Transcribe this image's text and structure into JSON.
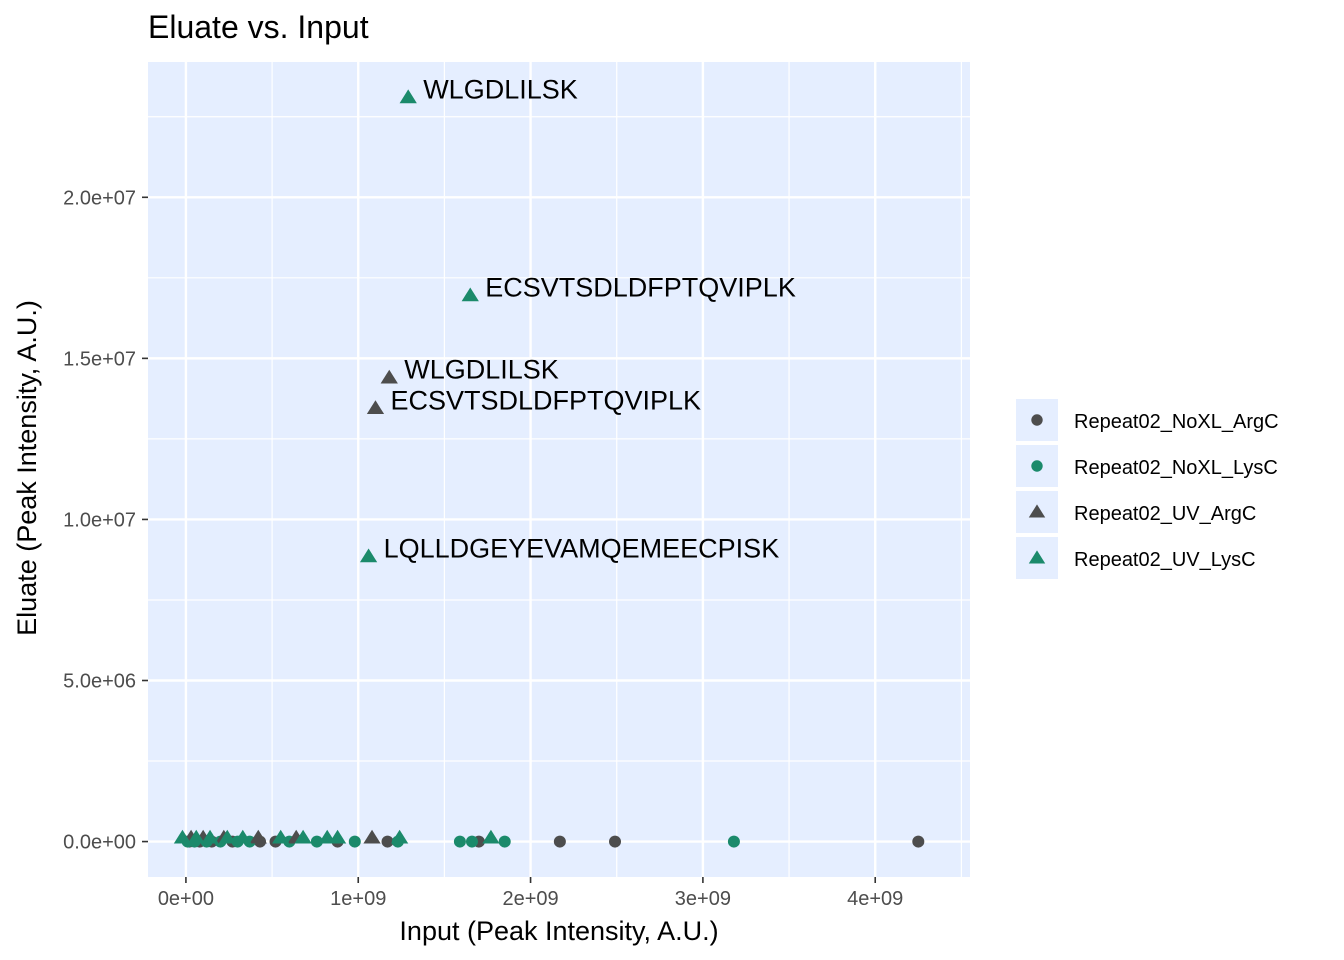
{
  "chart_data": {
    "type": "scatter",
    "title": "Eluate vs. Input",
    "xlabel": "Input (Peak Intensity, A.U.)",
    "ylabel": "Eluate (Peak Intensity, A.U.)",
    "xlim": [
      -220000000.0,
      4550000000.0
    ],
    "ylim": [
      -1100000.0,
      24200000.0
    ],
    "x_ticks": [
      {
        "value": 0,
        "label": "0e+00"
      },
      {
        "value": 1000000000.0,
        "label": "1e+09"
      },
      {
        "value": 2000000000.0,
        "label": "2e+09"
      },
      {
        "value": 3000000000.0,
        "label": "3e+09"
      },
      {
        "value": 4000000000.0,
        "label": "4e+09"
      }
    ],
    "y_ticks": [
      {
        "value": 0,
        "label": "0.0e+00"
      },
      {
        "value": 5000000.0,
        "label": "5.0e+06"
      },
      {
        "value": 10000000.0,
        "label": "1.0e+07"
      },
      {
        "value": 15000000.0,
        "label": "1.5e+07"
      },
      {
        "value": 20000000.0,
        "label": "2.0e+07"
      }
    ],
    "grid": true,
    "panel_background": "#e5eeff",
    "legend_position": "right",
    "series": [
      {
        "name": "Repeat02_NoXL_ArgC",
        "shape": "circle",
        "color": "#4d4d4d",
        "points": [
          {
            "x": 20000000.0,
            "y": 0
          },
          {
            "x": 80000000.0,
            "y": 0
          },
          {
            "x": 150000000.0,
            "y": 0
          },
          {
            "x": 270000000.0,
            "y": 0
          },
          {
            "x": 430000000.0,
            "y": 0
          },
          {
            "x": 520000000.0,
            "y": 0
          },
          {
            "x": 880000000.0,
            "y": 0
          },
          {
            "x": 1170000000.0,
            "y": 0
          },
          {
            "x": 1700000000.0,
            "y": 0
          },
          {
            "x": 2170000000.0,
            "y": 0
          },
          {
            "x": 2490000000.0,
            "y": 0
          },
          {
            "x": 4250000000.0,
            "y": 0
          }
        ]
      },
      {
        "name": "Repeat02_NoXL_LysC",
        "shape": "circle",
        "color": "#1b8a6b",
        "points": [
          {
            "x": 10000000.0,
            "y": 0
          },
          {
            "x": 50000000.0,
            "y": 0
          },
          {
            "x": 120000000.0,
            "y": 0
          },
          {
            "x": 200000000.0,
            "y": 0
          },
          {
            "x": 300000000.0,
            "y": 0
          },
          {
            "x": 370000000.0,
            "y": 0
          },
          {
            "x": 600000000.0,
            "y": 0
          },
          {
            "x": 760000000.0,
            "y": 0
          },
          {
            "x": 980000000.0,
            "y": 0
          },
          {
            "x": 1230000000.0,
            "y": 0
          },
          {
            "x": 1590000000.0,
            "y": 0
          },
          {
            "x": 1660000000.0,
            "y": 0
          },
          {
            "x": 1850000000.0,
            "y": 0
          },
          {
            "x": 3180000000.0,
            "y": 0
          }
        ]
      },
      {
        "name": "Repeat02_UV_ArgC",
        "shape": "triangle",
        "color": "#4d4d4d",
        "points": [
          {
            "x": 30000000.0,
            "y": 120000.0
          },
          {
            "x": 100000000.0,
            "y": 120000.0
          },
          {
            "x": 220000000.0,
            "y": 120000.0
          },
          {
            "x": 420000000.0,
            "y": 120000.0
          },
          {
            "x": 640000000.0,
            "y": 120000.0
          },
          {
            "x": 1080000000.0,
            "y": 120000.0
          },
          {
            "x": 1100000000.0,
            "y": 13450000.0,
            "label": "ECSVTSDLDFPTQVIPLK"
          },
          {
            "x": 1180000000.0,
            "y": 14400000.0,
            "label": "WLGDLILSK"
          }
        ]
      },
      {
        "name": "Repeat02_UV_LysC",
        "shape": "triangle",
        "color": "#1b8a6b",
        "points": [
          {
            "x": -20000000.0,
            "y": 120000.0
          },
          {
            "x": 60000000.0,
            "y": 120000.0
          },
          {
            "x": 140000000.0,
            "y": 120000.0
          },
          {
            "x": 240000000.0,
            "y": 120000.0
          },
          {
            "x": 330000000.0,
            "y": 120000.0
          },
          {
            "x": 550000000.0,
            "y": 120000.0
          },
          {
            "x": 680000000.0,
            "y": 120000.0
          },
          {
            "x": 820000000.0,
            "y": 120000.0
          },
          {
            "x": 880000000.0,
            "y": 120000.0
          },
          {
            "x": 1240000000.0,
            "y": 120000.0
          },
          {
            "x": 1770000000.0,
            "y": 120000.0
          },
          {
            "x": 1060000000.0,
            "y": 8850000.0,
            "label": "LQLLDGEYEVAMQEMEECPISK"
          },
          {
            "x": 1290000000.0,
            "y": 23100000.0,
            "label": "WLGDLILSK"
          },
          {
            "x": 1650000000.0,
            "y": 16950000.0,
            "label": "ECSVTSDLDFPTQVIPLK"
          }
        ]
      }
    ]
  }
}
